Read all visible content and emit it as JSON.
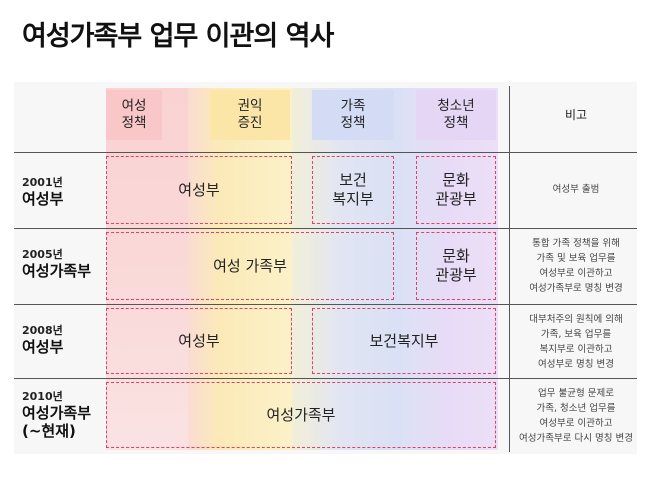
{
  "title": "여성가족부 업무 이관의 역사",
  "columns": [
    {
      "line1": "여성",
      "line2": "정책",
      "color": "#fad2d2"
    },
    {
      "line1": "권익",
      "line2": "증진",
      "color": "#fbeab8"
    },
    {
      "line1": "가족",
      "line2": "정책",
      "color": "#d9e0f5"
    },
    {
      "line1": "청소년",
      "line2": "정책",
      "color": "#e8dbf7"
    }
  ],
  "remark_header": "비고",
  "rows": [
    {
      "year": "2001년",
      "name": "여성부",
      "boxes": [
        {
          "label": "여성부"
        },
        {
          "label1": "보건",
          "label2": "복지부"
        },
        {
          "label1": "문화",
          "label2": "관광부"
        }
      ],
      "notes": [
        "여성부 출범"
      ]
    },
    {
      "year": "2005년",
      "name": "여성가족부",
      "boxes": [
        {
          "label": "여성 가족부"
        },
        {
          "label1": "문화",
          "label2": "관광부"
        }
      ],
      "notes": [
        "통합 가족 정책을 위해",
        "가족 및 보육 업무를",
        "여성부로 이관하고",
        "여성가족부로 명칭 변경"
      ]
    },
    {
      "year": "2008년",
      "name": "여성부",
      "boxes": [
        {
          "label": "여성부"
        },
        {
          "label": "보건복지부"
        }
      ],
      "notes": [
        "대부처주의 원칙에 의해",
        "가족, 보육 업무를",
        "복지부로 이관하고",
        "여성부로 명칭 변경"
      ]
    },
    {
      "year": "2010년",
      "name": "여성가족부",
      "name2": "(~현재)",
      "boxes": [
        {
          "label": "여성가족부"
        }
      ],
      "notes": [
        "업무 불균형 문제로",
        "가족, 청소년 업무를",
        "여성부로 이관하고",
        "여성가족부로 다시 명칭 변경"
      ]
    }
  ],
  "colors": {
    "dash": "#e0406a",
    "line": "#555555"
  }
}
